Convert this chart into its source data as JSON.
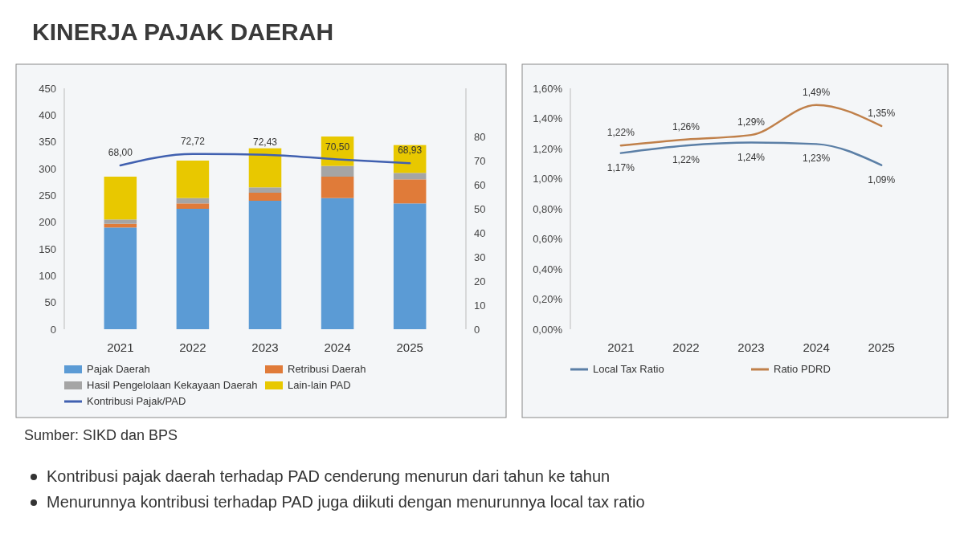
{
  "chart_data": [
    {
      "type": "bar",
      "title": "KINERJA PAJAK DAERAH",
      "categories": [
        "2021",
        "2022",
        "2023",
        "2024",
        "2025"
      ],
      "stacked": true,
      "legend": "bottom",
      "ylim": [
        0,
        450
      ],
      "yticks": [
        0,
        50,
        100,
        150,
        200,
        250,
        300,
        350,
        400,
        450
      ],
      "y2lim": [
        0,
        100
      ],
      "y2ticks": [
        0,
        10,
        20,
        30,
        40,
        50,
        60,
        70,
        80
      ],
      "series": [
        {
          "name": "Pajak Daerah",
          "color": "#5b9bd5",
          "values": [
            190,
            225,
            240,
            245,
            235
          ]
        },
        {
          "name": "Retribusi Daerah",
          "color": "#e07b39",
          "values": [
            7,
            10,
            15,
            40,
            45
          ]
        },
        {
          "name": "Hasil Pengelolaan Kekayaan Daerah",
          "color": "#a5a5a5",
          "values": [
            8,
            10,
            10,
            20,
            12
          ]
        },
        {
          "name": "Lain-lain PAD",
          "color": "#e8c800",
          "values": [
            80,
            70,
            73,
            55,
            52
          ]
        },
        {
          "name": "Kontribusi Pajak/PAD",
          "type": "line",
          "axis": "y2",
          "color": "#4060b0",
          "values": [
            68.0,
            72.72,
            72.43,
            70.5,
            68.93
          ],
          "value_labels": [
            "68,00",
            "72,72",
            "72,43",
            "70,50",
            "68,93"
          ]
        }
      ],
      "annotations": [
        "Sumber: SIKD dan BPS"
      ]
    },
    {
      "type": "line",
      "categories": [
        "2021",
        "2022",
        "2023",
        "2024",
        "2025"
      ],
      "legend": "bottom",
      "ylim": [
        0,
        1.6
      ],
      "yticks": [
        {
          "value": 0,
          "label": "0,00%"
        },
        {
          "value": 0.2,
          "label": "0,20%"
        },
        {
          "value": 0.4,
          "label": "0,40%"
        },
        {
          "value": 0.6,
          "label": "0,60%"
        },
        {
          "value": 0.8,
          "label": "0,80%"
        },
        {
          "value": 1.0,
          "label": "1,00%"
        },
        {
          "value": 1.2,
          "label": "1,20%"
        },
        {
          "value": 1.4,
          "label": "1,40%"
        },
        {
          "value": 1.6,
          "label": "1,60%"
        }
      ],
      "series": [
        {
          "name": "Local Tax Ratio",
          "color": "#5b7fa6",
          "values": [
            1.17,
            1.22,
            1.24,
            1.23,
            1.09
          ],
          "value_labels": [
            "1,17%",
            "1,22%",
            "1,24%",
            "1,23%",
            "1,09%"
          ]
        },
        {
          "name": "Ratio PDRD",
          "color": "#c0804a",
          "values": [
            1.22,
            1.26,
            1.29,
            1.49,
            1.35
          ],
          "value_labels": [
            "1,22%",
            "1,26%",
            "1,29%",
            "1,49%",
            "1,35%"
          ]
        }
      ],
      "annotations": [
        "Kontribusi pajak daerah terhadap PAD cenderung menurun dari tahun ke tahun",
        "Menurunnya kontribusi terhadap PAD juga diikuti dengan menurunnya local tax ratio"
      ]
    }
  ]
}
